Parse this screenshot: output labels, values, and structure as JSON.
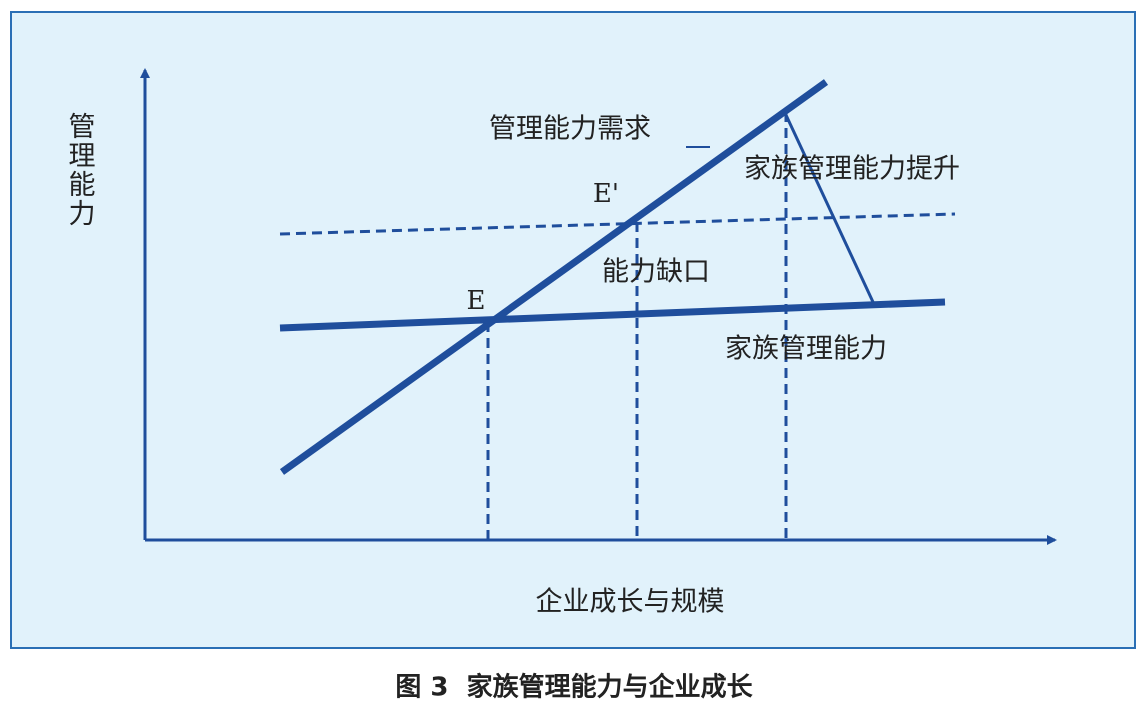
{
  "diagram": {
    "y_axis_label": "管理能力",
    "x_axis_label": "企业成长与规模",
    "demand_label": "管理能力需求",
    "upgrade_label": "家族管理能力提升",
    "point_e_prime": "E'",
    "gap_label": "能力缺口",
    "point_e": "E",
    "capability_label": "家族管理能力"
  },
  "caption": "图 3  家族管理能力与企业成长"
}
